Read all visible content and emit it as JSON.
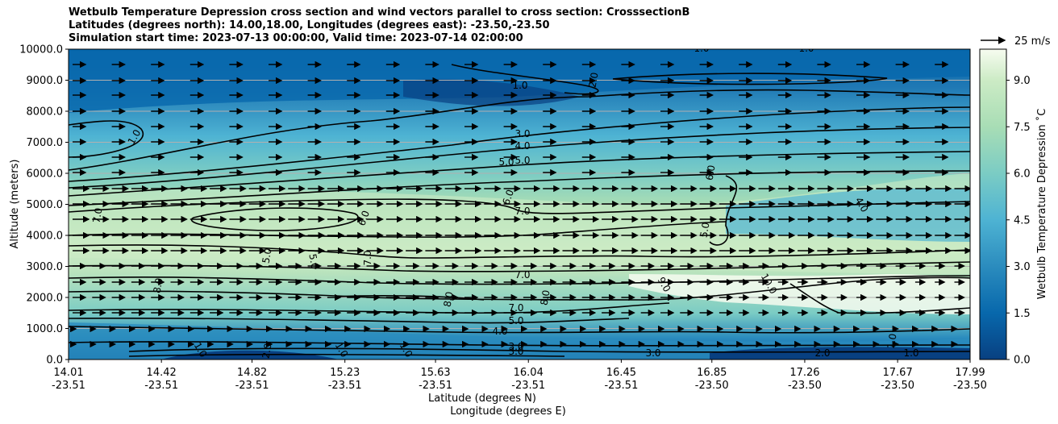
{
  "chart_data": {
    "type": "contour",
    "title_lines": [
      "Wetbulb Temperature Depression cross section and wind vectors parallel to cross section: CrosssectionB",
      "Latitudes (degrees north): 14.00,18.00, Longitudes (degrees east): -23.50,-23.50",
      "Simulation start time: 2023-07-13 00:00:00, Valid time: 2023-07-14 02:00:00"
    ],
    "xlabel_lines": [
      "Latitude (degrees N)",
      "Longitude (degrees E)"
    ],
    "ylabel": "Altitude (meters)",
    "x_ticks": [
      {
        "lat": "14.01",
        "lon": "-23.51"
      },
      {
        "lat": "14.42",
        "lon": "-23.51"
      },
      {
        "lat": "14.82",
        "lon": "-23.51"
      },
      {
        "lat": "15.23",
        "lon": "-23.51"
      },
      {
        "lat": "15.63",
        "lon": "-23.51"
      },
      {
        "lat": "16.04",
        "lon": "-23.51"
      },
      {
        "lat": "16.45",
        "lon": "-23.51"
      },
      {
        "lat": "16.85",
        "lon": "-23.50"
      },
      {
        "lat": "17.26",
        "lon": "-23.50"
      },
      {
        "lat": "17.67",
        "lon": "-23.50"
      },
      {
        "lat": "17.99",
        "lon": "-23.50"
      }
    ],
    "y_ticks": [
      "0.0",
      "1000.0",
      "2000.0",
      "3000.0",
      "4000.0",
      "5000.0",
      "6000.0",
      "7000.0",
      "8000.0",
      "9000.0",
      "10000.0"
    ],
    "ylim": [
      0,
      10000
    ],
    "grid": "horizontal",
    "colorbar": {
      "label": "Wetbulb Temperature Depression ˚C",
      "ticks": [
        "0.0",
        "1.5",
        "3.0",
        "4.5",
        "6.0",
        "7.5",
        "9.0"
      ],
      "range": [
        0,
        10
      ]
    },
    "quiver_key": "25 m/s",
    "contour_labels": [
      "1.0",
      "1.0",
      "1.0",
      "2.0",
      "1.0",
      "3.0",
      "4.0",
      "5.0",
      "5.0",
      "6.0",
      "7.0",
      "6.0",
      "7.0",
      "7.0",
      "5.0",
      "5.0",
      "8.0",
      "7.0",
      "8.0",
      "8.0",
      "9.0",
      "10.0",
      "7.0",
      "5.0",
      "4.0",
      "3.0",
      "3.0",
      "1.0",
      "2.0",
      "1.0",
      "1.0",
      "3.0",
      "2.0",
      "1.0",
      "1.0",
      "6.0",
      "4.0",
      "5.0"
    ]
  }
}
